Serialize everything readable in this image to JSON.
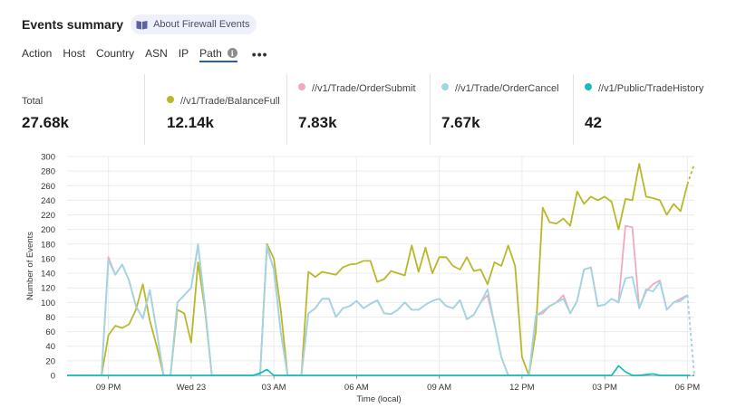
{
  "header": {
    "title": "Events summary",
    "about_label": "About Firewall Events"
  },
  "tabs": [
    {
      "label": "Action",
      "active": false
    },
    {
      "label": "Host",
      "active": false
    },
    {
      "label": "Country",
      "active": false
    },
    {
      "label": "ASN",
      "active": false
    },
    {
      "label": "IP",
      "active": false
    },
    {
      "label": "Path",
      "active": true
    }
  ],
  "more_label": "•••",
  "stats": [
    {
      "label": "Total",
      "value": "27.68k",
      "color": ""
    },
    {
      "label": "//v1/Trade/BalanceFull",
      "value": "12.14k",
      "color": "#b8b82a"
    },
    {
      "label": "//v1/Trade/OrderSubmit",
      "value": "7.83k",
      "color": "#f1a9c2"
    },
    {
      "label": "//v1/Trade/OrderCancel",
      "value": "7.67k",
      "color": "#9ed6e2"
    },
    {
      "label": "//v1/Public/TradeHistory",
      "value": "42",
      "color": "#1bbcbc"
    }
  ],
  "chart_data": {
    "type": "line",
    "xlabel": "Time (local)",
    "ylabel": "Number of Events",
    "ylim": [
      0,
      300
    ],
    "yticks": [
      0,
      20,
      40,
      60,
      80,
      100,
      120,
      140,
      160,
      180,
      200,
      220,
      240,
      260,
      280,
      300
    ],
    "xticks": [
      {
        "label": "09 PM",
        "index": 6
      },
      {
        "label": "Wed 23",
        "index": 18
      },
      {
        "label": "03 AM",
        "index": 30
      },
      {
        "label": "06 AM",
        "index": 42
      },
      {
        "label": "09 AM",
        "index": 54
      },
      {
        "label": "12 PM",
        "index": 66
      },
      {
        "label": "03 PM",
        "index": 78
      },
      {
        "label": "06 PM",
        "index": 90
      }
    ],
    "grid": true,
    "series": [
      {
        "name": "//v1/Trade/BalanceFull",
        "color": "#b8b82a",
        "values": [
          0,
          0,
          0,
          0,
          0,
          0,
          55,
          68,
          65,
          70,
          90,
          125,
          75,
          40,
          0,
          0,
          90,
          85,
          45,
          155,
          90,
          0,
          0,
          0,
          0,
          0,
          0,
          0,
          0,
          180,
          160,
          90,
          0,
          0,
          0,
          142,
          135,
          142,
          140,
          138,
          148,
          152,
          153,
          157,
          157,
          128,
          132,
          143,
          140,
          137,
          178,
          142,
          175,
          140,
          162,
          162,
          150,
          145,
          162,
          143,
          145,
          125,
          155,
          150,
          178,
          150,
          25,
          0,
          60,
          230,
          210,
          208,
          215,
          205,
          252,
          235,
          245,
          240,
          245,
          238,
          200,
          242,
          240,
          290,
          245,
          243,
          240,
          220,
          235,
          225,
          262,
          290
        ]
      },
      {
        "name": "//v1/Trade/OrderSubmit",
        "color": "#f1a9c2",
        "values": [
          0,
          0,
          0,
          0,
          0,
          0,
          162,
          138,
          152,
          130,
          95,
          78,
          117,
          60,
          0,
          0,
          100,
          110,
          120,
          178,
          95,
          0,
          0,
          0,
          0,
          0,
          0,
          0,
          0,
          175,
          145,
          60,
          0,
          0,
          0,
          85,
          92,
          105,
          105,
          80,
          92,
          95,
          102,
          92,
          98,
          103,
          85,
          84,
          90,
          100,
          90,
          90,
          97,
          102,
          105,
          95,
          92,
          103,
          77,
          83,
          100,
          110,
          70,
          25,
          0,
          0,
          0,
          0,
          82,
          85,
          95,
          100,
          110,
          85,
          102,
          145,
          148,
          95,
          97,
          105,
          100,
          205,
          203,
          92,
          115,
          125,
          130,
          90,
          100,
          105,
          110,
          0
        ]
      },
      {
        "name": "//v1/Trade/OrderCancel",
        "color": "#9ed6e2",
        "values": [
          0,
          0,
          0,
          0,
          0,
          0,
          158,
          138,
          152,
          130,
          95,
          78,
          117,
          60,
          0,
          0,
          100,
          110,
          120,
          180,
          95,
          0,
          0,
          0,
          0,
          0,
          0,
          0,
          0,
          178,
          145,
          60,
          0,
          0,
          0,
          85,
          92,
          105,
          105,
          80,
          92,
          95,
          102,
          92,
          98,
          103,
          85,
          84,
          90,
          100,
          90,
          90,
          97,
          102,
          105,
          95,
          92,
          103,
          77,
          83,
          100,
          118,
          70,
          25,
          0,
          0,
          0,
          0,
          82,
          88,
          95,
          100,
          105,
          85,
          102,
          145,
          148,
          95,
          97,
          105,
          100,
          133,
          135,
          92,
          118,
          115,
          128,
          90,
          100,
          102,
          110,
          0
        ]
      },
      {
        "name": "//v1/Public/TradeHistory",
        "color": "#1bbcbc",
        "values": [
          0,
          0,
          0,
          0,
          0,
          0,
          0,
          0,
          0,
          0,
          0,
          0,
          0,
          0,
          0,
          0,
          0,
          0,
          0,
          0,
          0,
          0,
          0,
          0,
          0,
          0,
          0,
          0,
          3,
          8,
          0,
          0,
          0,
          0,
          0,
          0,
          0,
          0,
          0,
          0,
          0,
          0,
          0,
          0,
          0,
          0,
          0,
          0,
          0,
          0,
          0,
          0,
          0,
          0,
          0,
          0,
          0,
          0,
          0,
          0,
          0,
          0,
          0,
          0,
          0,
          0,
          0,
          0,
          0,
          0,
          0,
          0,
          0,
          0,
          0,
          0,
          0,
          0,
          0,
          0,
          13,
          5,
          0,
          0,
          1,
          2,
          0,
          0,
          0,
          0,
          0,
          0
        ]
      }
    ]
  }
}
